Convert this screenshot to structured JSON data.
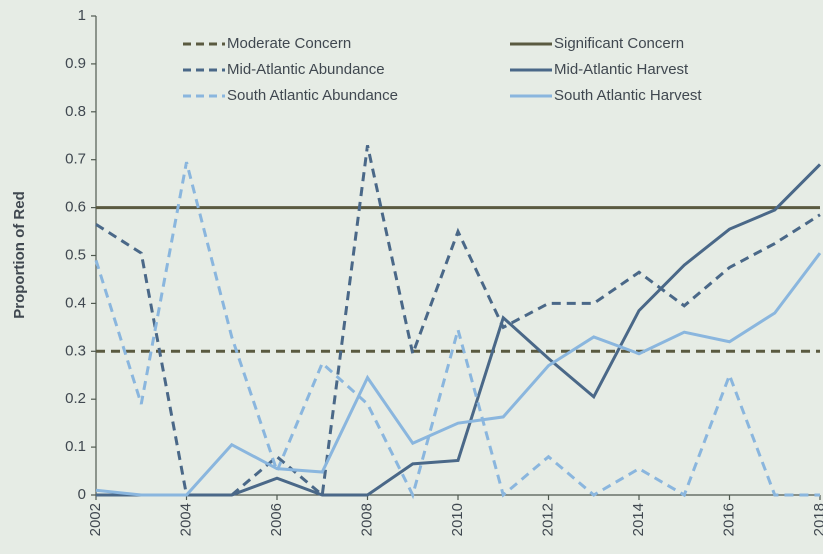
{
  "chart_data": {
    "type": "line",
    "y_label": "Proportion of Red",
    "x": [
      2002,
      2003,
      2004,
      2005,
      2006,
      2007,
      2008,
      2009,
      2010,
      2011,
      2012,
      2013,
      2014,
      2015,
      2016,
      2017,
      2018
    ],
    "xlim": [
      2002,
      2018
    ],
    "xticks": [
      2002,
      2004,
      2006,
      2008,
      2010,
      2012,
      2014,
      2016,
      2018
    ],
    "ylim": [
      0,
      1
    ],
    "yticks": [
      0,
      0.1,
      0.2,
      0.3,
      0.4,
      0.5,
      0.6,
      0.7,
      0.8,
      0.9,
      1
    ],
    "series": [
      {
        "name": "Moderate Concern",
        "color": "#5a5a40",
        "dashed": true,
        "values": [
          0.3,
          0.3,
          0.3,
          0.3,
          0.3,
          0.3,
          0.3,
          0.3,
          0.3,
          0.3,
          0.3,
          0.3,
          0.3,
          0.3,
          0.3,
          0.3,
          0.3
        ]
      },
      {
        "name": "Significant Concern",
        "color": "#5a5a40",
        "dashed": false,
        "values": [
          0.6,
          0.6,
          0.6,
          0.6,
          0.6,
          0.6,
          0.6,
          0.6,
          0.6,
          0.6,
          0.6,
          0.6,
          0.6,
          0.6,
          0.6,
          0.6,
          0.6
        ]
      },
      {
        "name": "Mid-Atlantic Abundance",
        "color": "#4a6888",
        "dashed": true,
        "values": [
          0.565,
          0.505,
          0,
          0,
          0.08,
          0,
          0.73,
          0.295,
          0.55,
          0.35,
          0.4,
          0.4,
          0.465,
          0.395,
          0.475,
          0.525,
          0.585
        ]
      },
      {
        "name": "Mid-Atlantic Harvest",
        "color": "#4a6888",
        "dashed": false,
        "values": [
          0,
          0,
          0,
          0,
          0.035,
          0,
          0,
          0.065,
          0.072,
          0.37,
          0.285,
          0.205,
          0.385,
          0.48,
          0.555,
          0.595,
          0.69
        ]
      },
      {
        "name": "South Atlantic Abundance",
        "color": "#8ab6de",
        "dashed": true,
        "values": [
          0.49,
          0.19,
          0.695,
          0.33,
          0.05,
          0.275,
          0.19,
          0,
          0.345,
          0,
          0.08,
          0,
          0.055,
          0,
          0.25,
          0,
          0
        ]
      },
      {
        "name": "South Atlantic Harvest",
        "color": "#8ab6de",
        "dashed": false,
        "values": [
          0.01,
          0,
          0,
          0.105,
          0.055,
          0.048,
          0.245,
          0.108,
          0.15,
          0.163,
          0.27,
          0.33,
          0.295,
          0.34,
          0.32,
          0.38,
          0.505
        ]
      }
    ]
  }
}
